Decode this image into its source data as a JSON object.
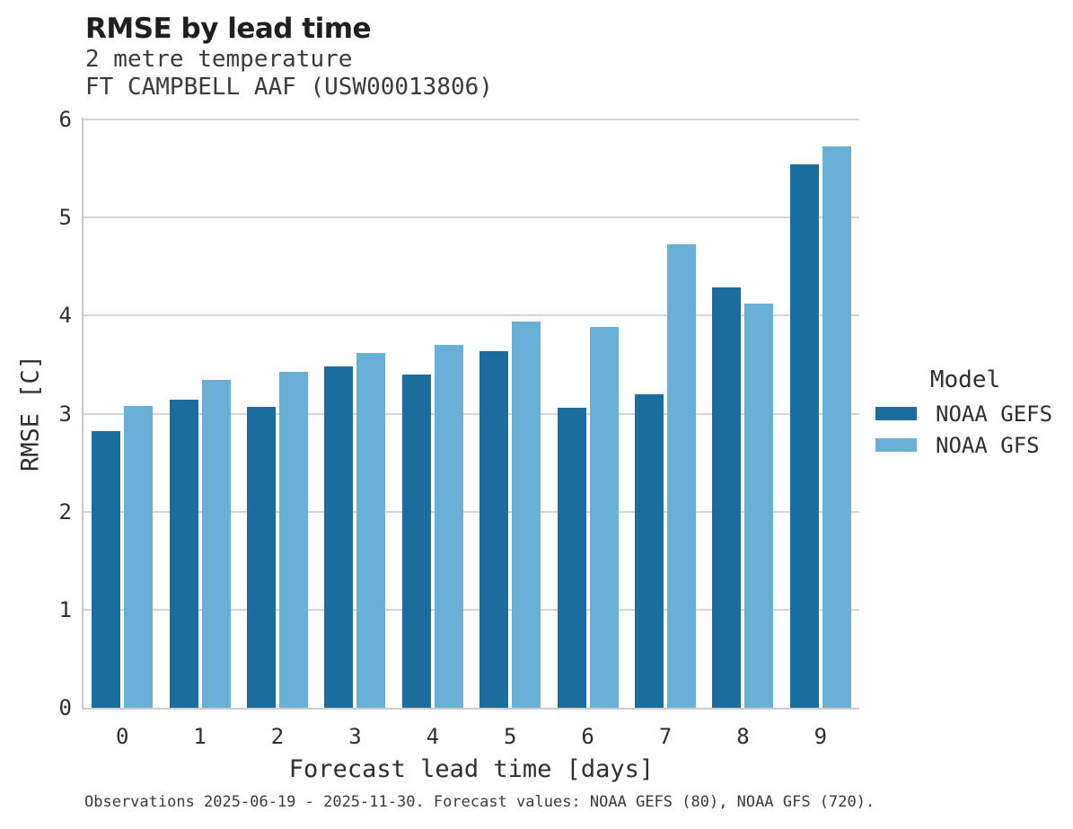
{
  "chart_data": {
    "type": "bar",
    "title": "RMSE by lead time",
    "subtitle": "2 metre temperature",
    "station": "FT CAMPBELL AAF (USW00013806)",
    "xlabel": "Forecast lead time [days]",
    "ylabel": "RMSE [C]",
    "categories": [
      "0",
      "1",
      "2",
      "3",
      "4",
      "5",
      "6",
      "7",
      "8",
      "9"
    ],
    "series": [
      {
        "name": "NOAA GEFS",
        "color": "#1a6d9d",
        "values": [
          2.82,
          3.14,
          3.07,
          3.48,
          3.4,
          3.64,
          3.06,
          3.2,
          4.29,
          5.54
        ]
      },
      {
        "name": "NOAA GFS",
        "color": "#69b0d7",
        "values": [
          3.08,
          3.34,
          3.43,
          3.62,
          3.7,
          3.94,
          3.88,
          4.73,
          4.12,
          5.73
        ]
      }
    ],
    "ylim": [
      0,
      6
    ],
    "yticks": [
      0,
      1,
      2,
      3,
      4,
      5,
      6
    ],
    "grid": true,
    "legend": {
      "title": "Model",
      "position": "right"
    },
    "caption": "Observations 2025-06-19 - 2025-11-30. Forecast values: NOAA GEFS (80), NOAA GFS (720)."
  },
  "colors": {
    "gridline": "#d4d4d4",
    "spine": "#c9c9c9",
    "background": "#ffffff"
  }
}
